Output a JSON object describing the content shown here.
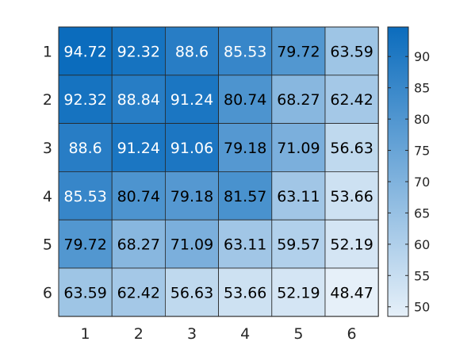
{
  "chart_data": {
    "type": "heatmap",
    "x_categories": [
      "1",
      "2",
      "3",
      "4",
      "5",
      "6"
    ],
    "y_categories": [
      "1",
      "2",
      "3",
      "4",
      "5",
      "6"
    ],
    "values": [
      [
        94.72,
        92.32,
        88.6,
        85.53,
        79.72,
        63.59
      ],
      [
        92.32,
        88.84,
        91.24,
        80.74,
        68.27,
        62.42
      ],
      [
        88.6,
        91.24,
        91.06,
        79.18,
        71.09,
        56.63
      ],
      [
        85.53,
        80.74,
        79.18,
        81.57,
        63.11,
        53.66
      ],
      [
        79.72,
        68.27,
        71.09,
        63.11,
        59.57,
        52.19
      ],
      [
        63.59,
        62.42,
        56.63,
        53.66,
        52.19,
        48.47
      ]
    ],
    "colorbar": {
      "range": [
        48.47,
        94.72
      ],
      "ticks": [
        50,
        55,
        60,
        65,
        70,
        75,
        80,
        85,
        90
      ],
      "color_low": "#e6f0f9",
      "color_high": "#0b6cbd"
    },
    "title": "",
    "xlabel": "",
    "ylabel": "",
    "grid": false,
    "legend": "colorbar-right"
  }
}
